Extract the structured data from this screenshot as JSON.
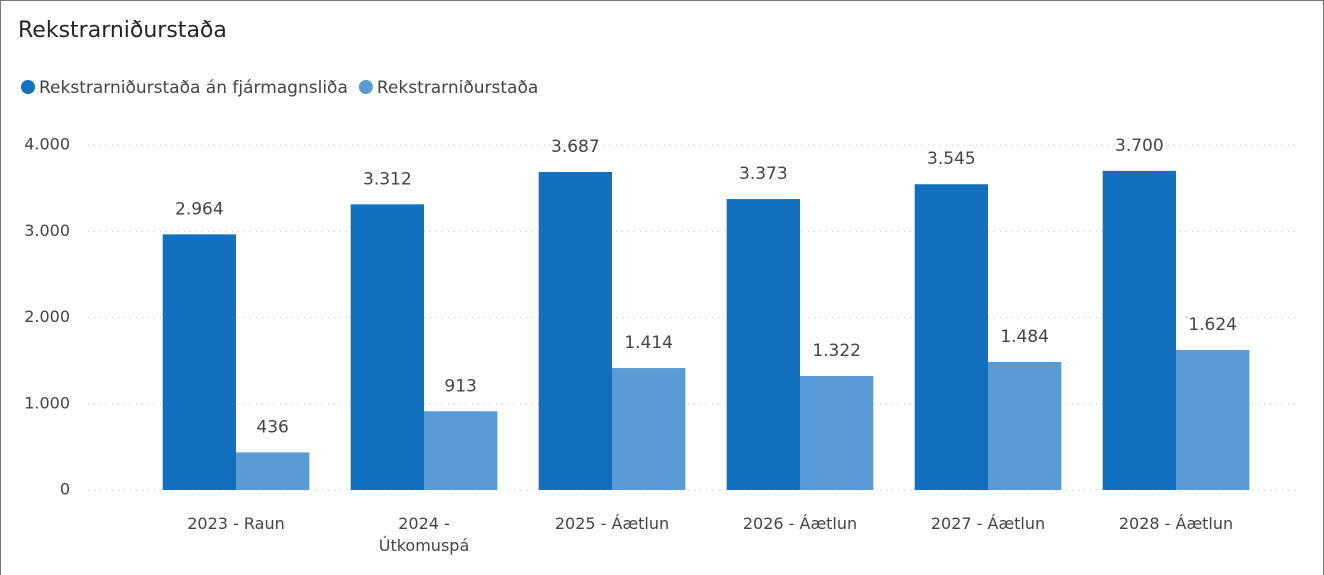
{
  "chart_data": {
    "type": "bar",
    "title": "Rekstrarniðurstaða",
    "categories": [
      "2023 - Raun",
      "2024 - Útkomuspá",
      "2025 - Áætlun",
      "2026 - Áætlun",
      "2027 - Áætlun",
      "2028 - Áætlun"
    ],
    "series": [
      {
        "name": "Rekstrarniðurstaða án fjármagnsliða",
        "color": "#1170c0",
        "values": [
          2964,
          3312,
          3687,
          3373,
          3545,
          3700
        ],
        "value_labels": [
          "2.964",
          "3.312",
          "3.687",
          "3.373",
          "3.545",
          "3.700"
        ]
      },
      {
        "name": "Rekstrarniðurstaða",
        "color": "#5b9bd5",
        "values": [
          436,
          913,
          1414,
          1322,
          1484,
          1624
        ],
        "value_labels": [
          "436",
          "913",
          "1.414",
          "1.322",
          "1.484",
          "1.624"
        ]
      }
    ],
    "ylim": [
      0,
      4000
    ],
    "yticks": [
      0,
      {
        "value": 1000,
        "label": "1.000"
      },
      {
        "value": 2000,
        "label": "2.000"
      },
      {
        "value": 3000,
        "label": "3.000"
      },
      {
        "value": 4000,
        "label": "4.000"
      }
    ],
    "grid": true
  }
}
